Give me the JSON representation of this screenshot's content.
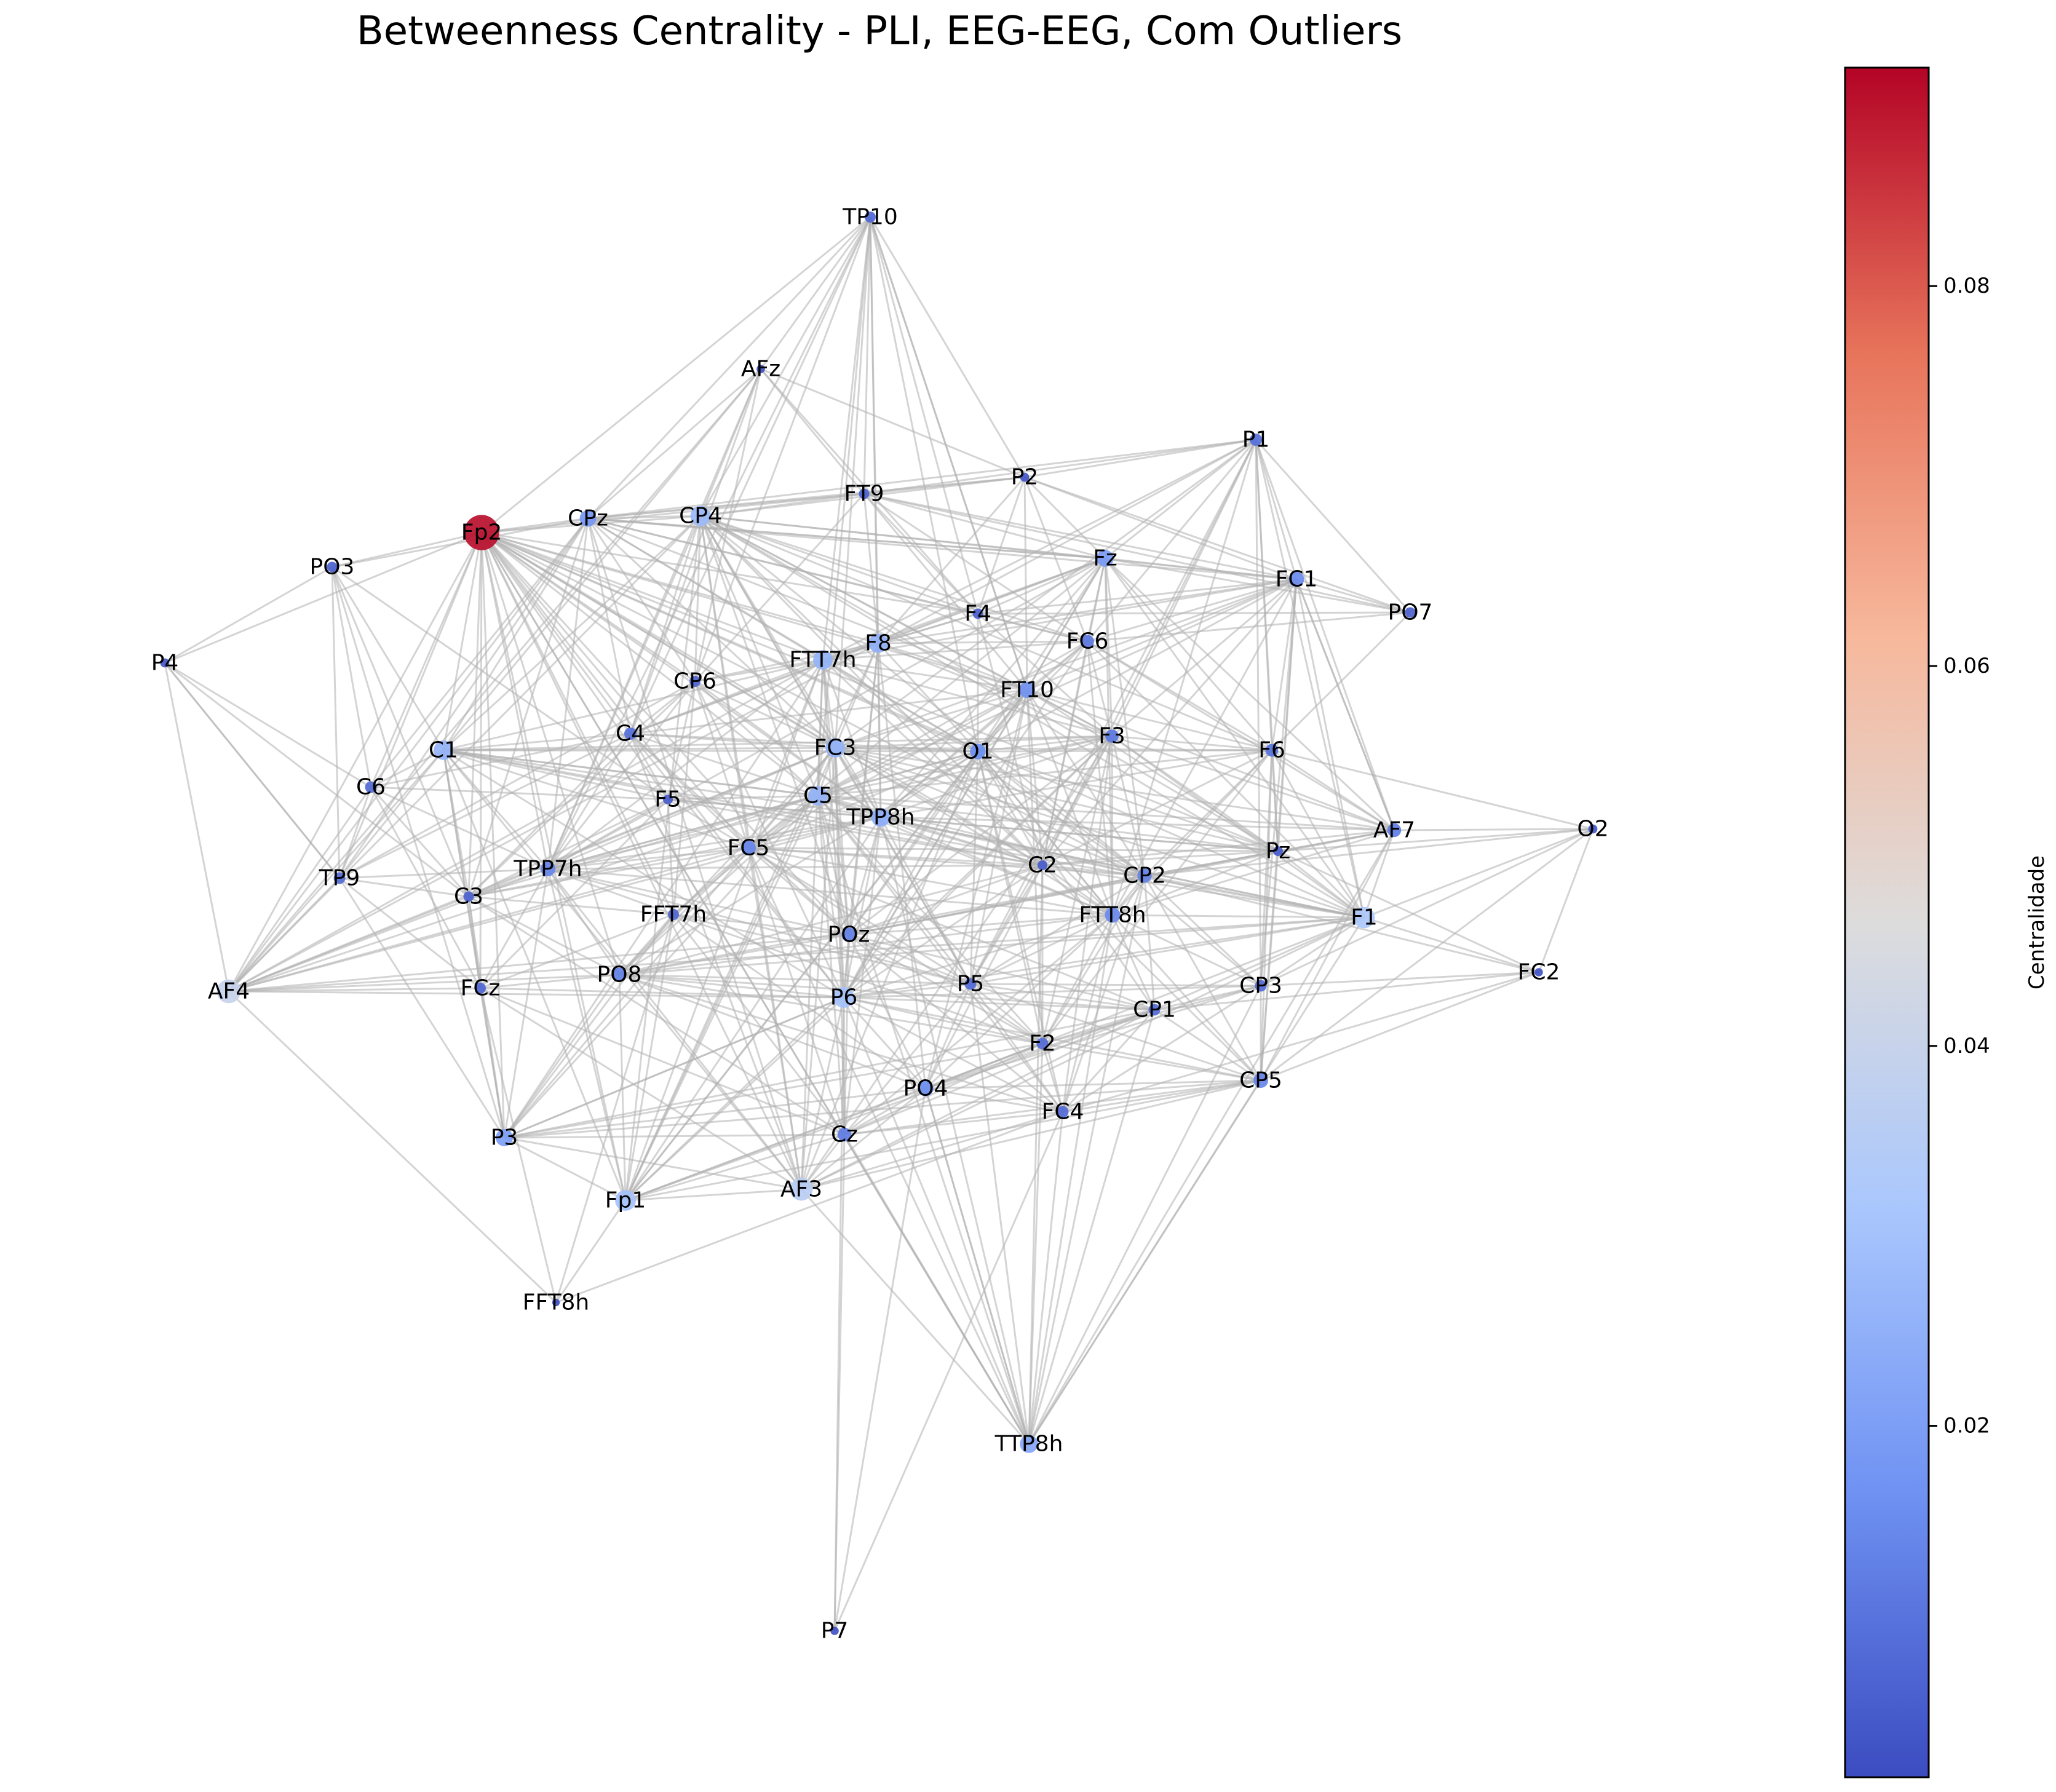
{
  "title": "Betweenness Centrality - PLI, EEG-EEG, Com Outliers",
  "colorbar": {
    "label": "Centralidade",
    "colormap": "coolwarm",
    "min": 0.0015,
    "max": 0.0915,
    "ticks": [
      "0.02",
      "0.04",
      "0.06",
      "0.08"
    ],
    "colors": [
      "#3b4cc0",
      "#6f92f3",
      "#aac7fd",
      "#dddcdc",
      "#f7b89c",
      "#e7745b",
      "#b40426"
    ]
  },
  "edge_color": "#b0b0b0",
  "nodes": [
    {
      "id": "Fp2",
      "value": 0.09
    },
    {
      "id": "AF4",
      "value": 0.04
    },
    {
      "id": "AF3",
      "value": 0.036
    },
    {
      "id": "F1",
      "value": 0.032
    },
    {
      "id": "Fp1",
      "value": 0.03
    },
    {
      "id": "P6",
      "value": 0.03
    },
    {
      "id": "CP4",
      "value": 0.028
    },
    {
      "id": "FTT7h",
      "value": 0.026
    },
    {
      "id": "C1",
      "value": 0.026
    },
    {
      "id": "FC3",
      "value": 0.026
    },
    {
      "id": "C5",
      "value": 0.026
    },
    {
      "id": "F8",
      "value": 0.025
    },
    {
      "id": "TPP8h",
      "value": 0.024
    },
    {
      "id": "TTP8h",
      "value": 0.022
    },
    {
      "id": "P3",
      "value": 0.02
    },
    {
      "id": "Fz",
      "value": 0.019
    },
    {
      "id": "CPz",
      "value": 0.018
    },
    {
      "id": "FT10",
      "value": 0.017
    },
    {
      "id": "O1",
      "value": 0.016
    },
    {
      "id": "PO4",
      "value": 0.016
    },
    {
      "id": "FC1",
      "value": 0.015
    },
    {
      "id": "FTT8h",
      "value": 0.015
    },
    {
      "id": "CP5",
      "value": 0.014
    },
    {
      "id": "TPP7h",
      "value": 0.014
    },
    {
      "id": "FC5",
      "value": 0.014
    },
    {
      "id": "PO8",
      "value": 0.013
    },
    {
      "id": "POz",
      "value": 0.013
    },
    {
      "id": "CP2",
      "value": 0.013
    },
    {
      "id": "Cz",
      "value": 0.012
    },
    {
      "id": "AF7",
      "value": 0.012
    },
    {
      "id": "FC6",
      "value": 0.011
    },
    {
      "id": "F3",
      "value": 0.011
    },
    {
      "id": "F6",
      "value": 0.01
    },
    {
      "id": "C4",
      "value": 0.009
    },
    {
      "id": "P1",
      "value": 0.009
    },
    {
      "id": "CP1",
      "value": 0.008
    },
    {
      "id": "CP3",
      "value": 0.008
    },
    {
      "id": "FC4",
      "value": 0.008
    },
    {
      "id": "C6",
      "value": 0.008
    },
    {
      "id": "TP9",
      "value": 0.008
    },
    {
      "id": "P5",
      "value": 0.008
    },
    {
      "id": "F2",
      "value": 0.008
    },
    {
      "id": "CP6",
      "value": 0.007
    },
    {
      "id": "FFT7h",
      "value": 0.007
    },
    {
      "id": "TP10",
      "value": 0.007
    },
    {
      "id": "FCz",
      "value": 0.007
    },
    {
      "id": "C3",
      "value": 0.006
    },
    {
      "id": "PO7",
      "value": 0.006
    },
    {
      "id": "FT9",
      "value": 0.006
    },
    {
      "id": "F4",
      "value": 0.006
    },
    {
      "id": "PO3",
      "value": 0.006
    },
    {
      "id": "F5",
      "value": 0.005
    },
    {
      "id": "C2",
      "value": 0.005
    },
    {
      "id": "Pz",
      "value": 0.005
    },
    {
      "id": "P2",
      "value": 0.004
    },
    {
      "id": "P4",
      "value": 0.004
    },
    {
      "id": "O2",
      "value": 0.004
    },
    {
      "id": "FC2",
      "value": 0.003
    },
    {
      "id": "AFz",
      "value": 0.003
    },
    {
      "id": "P7",
      "value": 0.003
    },
    {
      "id": "FFT8h",
      "value": 0.002
    }
  ]
}
